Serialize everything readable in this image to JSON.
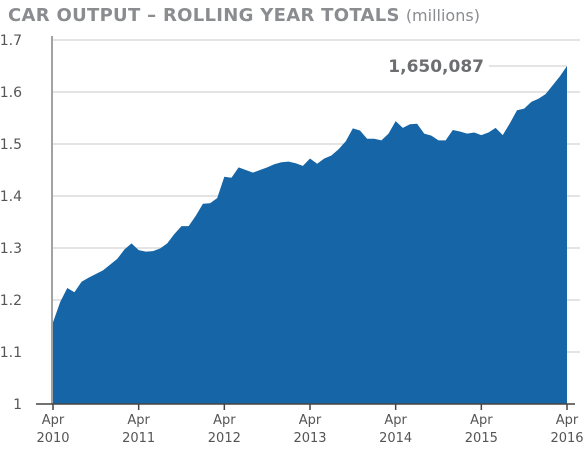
{
  "colors": {
    "area": "#1565a7",
    "grid": "#c8c8c8",
    "axis": "#444444",
    "text": "#555555",
    "title": "#8a8c8f"
  },
  "chart_data": {
    "type": "area",
    "title": "CAR OUTPUT – ROLLING YEAR TOTALS",
    "title_unit": "(millions)",
    "xlabel": "",
    "ylabel": "",
    "ylim": [
      1.0,
      1.7
    ],
    "grid": true,
    "y_ticks": [
      "1",
      "1.1",
      "1.2",
      "1.3",
      "1.4",
      "1.5",
      "1.6",
      "1.7"
    ],
    "x_ticks": [
      {
        "month": "Apr",
        "year": "2010",
        "x": 0
      },
      {
        "month": "Apr",
        "year": "2011",
        "x": 12
      },
      {
        "month": "Apr",
        "year": "2012",
        "x": 24
      },
      {
        "month": "Apr",
        "year": "2013",
        "x": 36
      },
      {
        "month": "Apr",
        "year": "2014",
        "x": 48
      },
      {
        "month": "Apr",
        "year": "2015",
        "x": 60
      },
      {
        "month": "Apr",
        "year": "2016",
        "x": 72
      }
    ],
    "annotation": {
      "text": "1,650,087",
      "x": 72,
      "y": 1.650087
    },
    "series": [
      {
        "x": [
          0,
          1,
          2,
          3,
          4,
          5,
          6,
          7,
          8,
          9,
          10,
          11,
          12,
          13,
          14,
          15,
          16,
          17,
          18,
          19,
          20,
          21,
          22,
          23,
          24,
          25,
          26,
          27,
          28,
          29,
          30,
          31,
          32,
          33,
          34,
          35,
          36,
          37,
          38,
          39,
          40,
          41,
          42,
          43,
          44,
          45,
          46,
          47,
          48,
          49,
          50,
          51,
          52,
          53,
          54,
          55,
          56,
          57,
          58,
          59,
          60,
          61,
          62,
          63,
          64,
          65,
          66,
          67,
          68,
          69,
          70,
          71,
          72
        ],
        "values": [
          1.157,
          1.196,
          1.223,
          1.215,
          1.235,
          1.243,
          1.25,
          1.257,
          1.268,
          1.279,
          1.297,
          1.309,
          1.296,
          1.293,
          1.294,
          1.299,
          1.309,
          1.327,
          1.342,
          1.342,
          1.362,
          1.385,
          1.386,
          1.396,
          1.437,
          1.435,
          1.455,
          1.45,
          1.445,
          1.45,
          1.455,
          1.461,
          1.465,
          1.466,
          1.463,
          1.458,
          1.472,
          1.462,
          1.472,
          1.478,
          1.49,
          1.505,
          1.53,
          1.526,
          1.51,
          1.51,
          1.507,
          1.52,
          1.544,
          1.531,
          1.538,
          1.539,
          1.52,
          1.516,
          1.507,
          1.507,
          1.527,
          1.524,
          1.52,
          1.522,
          1.517,
          1.522,
          1.531,
          1.517,
          1.54,
          1.565,
          1.568,
          1.581,
          1.587,
          1.596,
          1.613,
          1.63,
          1.65
        ]
      }
    ]
  }
}
